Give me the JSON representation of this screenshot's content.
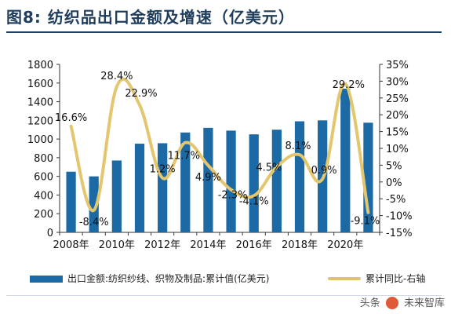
{
  "figure": {
    "title": "图8:  纺织品出口金额及增速（亿美元）"
  },
  "legend": {
    "bar_label": "出口金额:纺织纱线、织物及制品:累计值(亿美元)",
    "line_label": "累计同比-右轴"
  },
  "watermark": {
    "text_left": "头条",
    "text_right": "未来智库"
  },
  "colors": {
    "bar": "#1b6aa5",
    "line": "#e3c66e",
    "title": "#1f3d5c"
  },
  "chart_data": {
    "type": "bar",
    "categories": [
      "2008年",
      "2009年",
      "2010年",
      "2011年",
      "2012年",
      "2013年",
      "2014年",
      "2015年",
      "2016年",
      "2017年",
      "2018年",
      "2019年",
      "2020年",
      "2021年"
    ],
    "x_tick_labels": [
      "2008年",
      "2010年",
      "2012年",
      "2014年",
      "2016年",
      "2018年",
      "2020年"
    ],
    "y_left_ticks": [
      "0",
      "200",
      "400",
      "600",
      "800",
      "1000",
      "1200",
      "1400",
      "1600",
      "1800"
    ],
    "y_right_ticks": [
      "-15%",
      "-10%",
      "-5%",
      "0%",
      "5%",
      "10%",
      "15%",
      "20%",
      "25%",
      "30%",
      "35%"
    ],
    "ylim_left": [
      0,
      1800
    ],
    "ylim_right": [
      -15,
      35
    ],
    "series": [
      {
        "name": "出口金额:纺织纱线、织物及制品:累计值(亿美元)",
        "type": "bar",
        "axis": "left",
        "values": [
          650,
          600,
          770,
          950,
          955,
          1070,
          1120,
          1090,
          1050,
          1100,
          1190,
          1200,
          1540,
          1175
        ]
      },
      {
        "name": "累计同比-右轴",
        "type": "line",
        "axis": "right",
        "values": [
          16.6,
          -8.4,
          28.4,
          22.9,
          1.2,
          11.7,
          4.9,
          -2.3,
          -4.1,
          4.5,
          8.1,
          0.9,
          29.2,
          -9.1
        ],
        "data_labels": [
          "16.6%",
          "-8.4%",
          "28.4%",
          "22.9%",
          "1.2%",
          "11.7%",
          "4.9%",
          "-2.3%",
          "-4.1%",
          "4.5%",
          "8.1%",
          "0.9%",
          "29.2%",
          "-9.1%"
        ]
      }
    ]
  }
}
